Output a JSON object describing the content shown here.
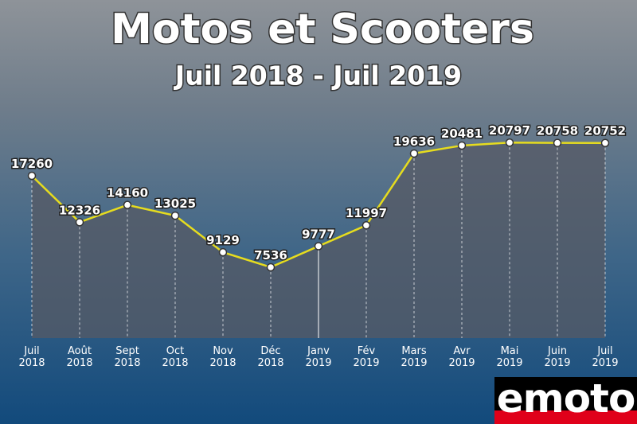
{
  "logo": "emoto",
  "chart_data": {
    "type": "line",
    "title": "Motos et Scooters",
    "subtitle": "Juil 2018 - Juil 2019",
    "categories": [
      "Juil\n2018",
      "Août\n2018",
      "Sept\n2018",
      "Oct\n2018",
      "Nov\n2018",
      "Déc\n2018",
      "Janv\n2019",
      "Fév\n2019",
      "Mars\n2019",
      "Avr\n2019",
      "Mai\n2019",
      "Juin\n2019",
      "Juil\n2019"
    ],
    "series": [
      {
        "name": "Motos et Scooters",
        "color": "#e6dc1e",
        "values": [
          17260,
          12326,
          14160,
          13025,
          9129,
          7536,
          9777,
          11997,
          19636,
          20481,
          20797,
          20758,
          20752
        ]
      }
    ],
    "ylim": [
      0,
      22000
    ]
  }
}
